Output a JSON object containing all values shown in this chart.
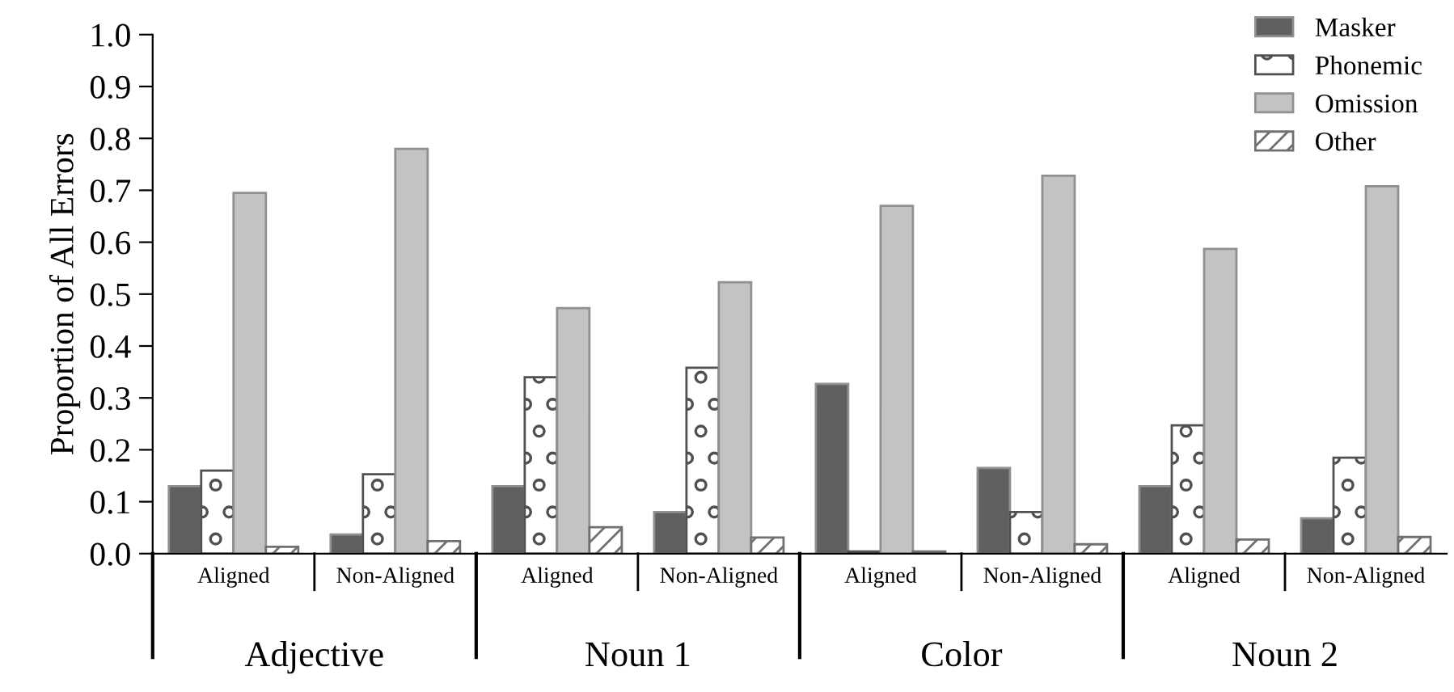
{
  "chart_data": {
    "type": "bar",
    "ylabel": "Proportion of All Errors",
    "categories": [
      "Aligned",
      "Non-Aligned",
      "Aligned",
      "Non-Aligned",
      "Aligned",
      "Non-Aligned",
      "Aligned",
      "Non-Aligned"
    ],
    "annotations": [
      "Adjective",
      "Noun 1",
      "Color",
      "Noun 2"
    ],
    "series": [
      {
        "name": "Masker",
        "color": "#606060",
        "values": [
          0.13,
          0.037,
          0.13,
          0.08,
          0.327,
          0.165,
          0.13,
          0.068
        ]
      },
      {
        "name": "Phonemic",
        "color": "#505050",
        "values": [
          0.16,
          0.153,
          0.34,
          0.358,
          0.004,
          0.08,
          0.247,
          0.185
        ]
      },
      {
        "name": "Omission",
        "color": "#c3c3c3",
        "values": [
          0.695,
          0.78,
          0.473,
          0.523,
          0.67,
          0.728,
          0.587,
          0.708
        ]
      },
      {
        "name": "Other",
        "color": "#707070",
        "values": [
          0.013,
          0.024,
          0.051,
          0.031,
          0.004,
          0.018,
          0.027,
          0.032
        ]
      }
    ],
    "ylim": [
      0,
      1.0
    ],
    "yticks": [
      {
        "value": 0,
        "label": "0.0"
      },
      0.1,
      0.2,
      0.3,
      0.4,
      0.5,
      0.6,
      0.7,
      0.8,
      0.9,
      {
        "value": 1,
        "label": "1.0"
      }
    ],
    "grid": false,
    "legend": "top right"
  }
}
